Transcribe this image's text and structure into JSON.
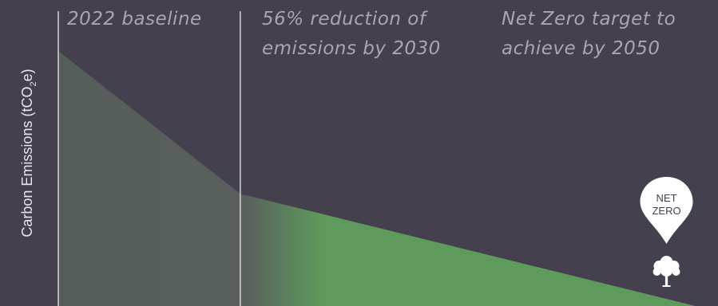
{
  "chart_data": {
    "type": "area",
    "x": [
      2022,
      2030,
      2050
    ],
    "series": [
      {
        "values": [
          100,
          44,
          0
        ]
      }
    ],
    "xlim": [
      2022,
      2051
    ],
    "ylim": [
      0,
      120
    ],
    "ylabel": "Carbon Emissions (tCO",
    "ylabel_sub": "2",
    "ylabel_suffix": "e)",
    "grid": false,
    "annotations": {
      "baseline": "2022 baseline",
      "reduction_line1": "56% reduction of",
      "reduction_line2": "emissions by 2030",
      "target_line1": "Net Zero target to",
      "target_line2": "achieve by 2050"
    },
    "marker": {
      "line1": "NET",
      "line2": "ZERO",
      "icon": "tree-icon"
    },
    "colors": {
      "background": "#44404d",
      "area_start": "#565e5c",
      "area_end": "#5e9a5c",
      "divider": "#d6d3dc",
      "annotation": "#a9a6b0"
    }
  }
}
